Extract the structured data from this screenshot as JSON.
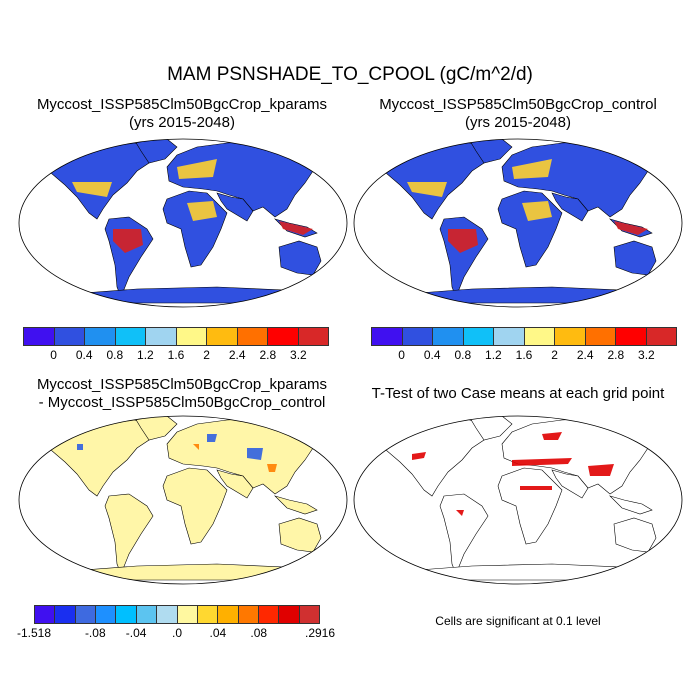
{
  "title": "MAM PSNSHADE_TO_CPOOL (gC/m^2/d)",
  "panels": [
    {
      "title_line1": "Myccost_ISSP585Clm50BgcCrop_kparams",
      "title_line2": "(yrs 2015-2048)",
      "land_color": "#3050e0",
      "hot_color": "#d82020",
      "mid_color": "#ffd030"
    },
    {
      "title_line1": "Myccost_ISSP585Clm50BgcCrop_control",
      "title_line2": "(yrs 2015-2048)",
      "land_color": "#3050e0",
      "hot_color": "#d82020",
      "mid_color": "#ffd030"
    },
    {
      "title_line1": "Myccost_ISSP585Clm50BgcCrop_kparams",
      "title_line2": "- Myccost_ISSP585Clm50BgcCrop_control",
      "land_color": "#fff6a8",
      "hot_color": "#3060e0",
      "mid_color": "#ff8000"
    },
    {
      "title_line1": "T-Test of two Case means at each grid point",
      "land_color": "#ffffff",
      "hot_color": "#e00000",
      "mid_color": "#e00000"
    }
  ],
  "colorbar_abs": {
    "colors": [
      "#4010f0",
      "#3050e0",
      "#2090f0",
      "#10c0f8",
      "#a0d4f0",
      "#fff888",
      "#ffbb10",
      "#ff7000",
      "#ff0000",
      "#d82828"
    ],
    "labels": [
      "0",
      "0.4",
      "0.8",
      "1.2",
      "1.6",
      "2",
      "2.4",
      "2.8",
      "3.2"
    ]
  },
  "colorbar_diff": {
    "colors": [
      "#4010f0",
      "#1a2ff0",
      "#3e6ae0",
      "#1e90ff",
      "#00bfff",
      "#5cc4f0",
      "#b0dcf0",
      "#fff8a0",
      "#ffd830",
      "#ffb000",
      "#ff7800",
      "#ff2800",
      "#e00000",
      "#d03030"
    ],
    "labels": [
      "-1.518",
      "-.08",
      "-.04",
      ".0",
      ".04",
      ".08",
      ".2916"
    ]
  },
  "significance_note": "Cells are significant at 0.1 level"
}
